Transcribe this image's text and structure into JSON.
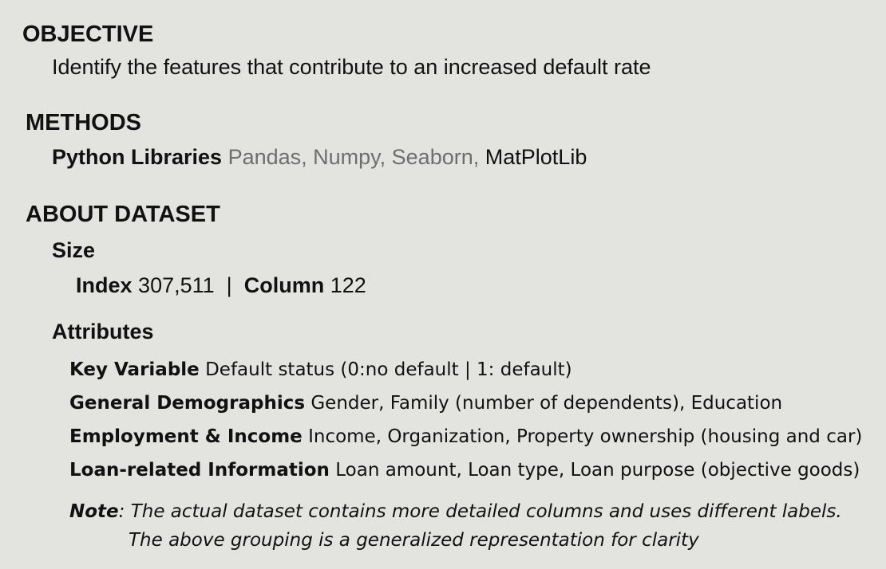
{
  "objective": {
    "heading": "OBJECTIVE",
    "text": "Identify the features that contribute to an increased default rate"
  },
  "methods": {
    "heading": "METHODS",
    "label": "Python Libraries",
    "libs_gray": "Pandas, Numpy, Seaborn,",
    "libs_black": "MatPlotLib"
  },
  "dataset": {
    "heading": "ABOUT DATASET",
    "size_heading": "Size",
    "index_label": "Index",
    "index_value": "307,511",
    "separator": "|",
    "column_label": "Column",
    "column_value": "122",
    "attributes_heading": "Attributes",
    "attributes": [
      {
        "label": "Key Variable",
        "text": "Default status (0:no default | 1: default)"
      },
      {
        "label": "General Demographics",
        "text": "Gender,  Family (number of dependents), Education"
      },
      {
        "label": "Employment & Income",
        "text": "Income, Organization, Property ownership (housing and car)"
      },
      {
        "label": "Loan-related Information",
        "text": "Loan amount, Loan type, Loan purpose (objective goods)"
      }
    ],
    "note": {
      "label": "Note",
      "line1": ": The actual dataset contains more detailed columns and uses different labels.",
      "line2": "The above grouping is a generalized representation for clarity"
    }
  },
  "colors": {
    "background": "#e3e4e0",
    "text": "#111111",
    "muted": "#6e6e6e"
  }
}
